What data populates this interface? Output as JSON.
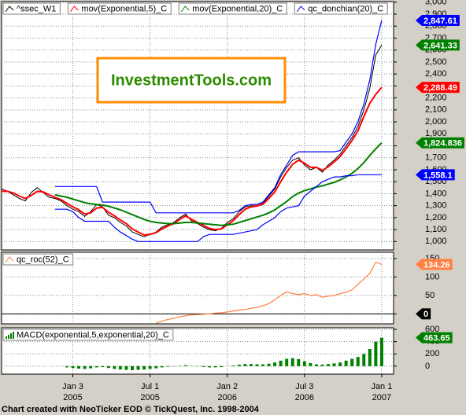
{
  "watermark": "InvestmentTools.com",
  "footer": "Chart created with NeoTicker EOD © TickQuest, Inc. 1998-2004",
  "chart_data": [
    {
      "type": "line",
      "x": [
        -24,
        -22,
        -20,
        -18,
        -16,
        -14,
        -12,
        -10,
        -8,
        -6,
        -4,
        -2,
        0,
        2,
        4,
        6,
        8,
        10,
        12,
        14,
        16,
        18,
        20,
        22,
        24,
        26,
        28,
        30,
        32,
        34,
        36,
        38,
        40,
        42,
        44,
        46,
        48,
        50,
        52,
        54,
        56,
        58,
        60,
        62,
        64,
        66,
        68,
        70,
        72,
        74,
        76,
        78,
        80,
        82,
        84,
        86,
        88,
        90,
        92,
        94,
        96,
        98,
        100,
        102,
        104
      ],
      "xlim": [
        -24,
        108
      ],
      "xticks": [
        {
          "value": 0,
          "label": "Jan 3",
          "year": "2005"
        },
        {
          "value": 26,
          "label": "Jul 1",
          "year": "2005"
        },
        {
          "value": 52,
          "label": "Jan 2",
          "year": "2006"
        },
        {
          "value": 78,
          "label": "Jul 3",
          "year": "2006"
        },
        {
          "value": 104,
          "label": "Jan 1",
          "year": "2007"
        }
      ],
      "ylim": [
        930,
        3005
      ],
      "yticks": [
        {
          "value": 1000,
          "label": "1,000"
        },
        {
          "value": 1100,
          "label": "1,100"
        },
        {
          "value": 1200,
          "label": "1,200"
        },
        {
          "value": 1300,
          "label": "1,300"
        },
        {
          "value": 1400,
          "label": "1,400"
        },
        {
          "value": 1500,
          "label": "1,500"
        },
        {
          "value": 1600,
          "label": "1,600"
        },
        {
          "value": 1700,
          "label": "1,700"
        },
        {
          "value": 1800,
          "label": "1,800"
        },
        {
          "value": 1900,
          "label": "1,900"
        },
        {
          "value": 2000,
          "label": "2,000"
        },
        {
          "value": 2100,
          "label": "2,100"
        },
        {
          "value": 2200,
          "label": "2,200"
        },
        {
          "value": 2300,
          "label": "2,300"
        },
        {
          "value": 2400,
          "label": "2,400"
        },
        {
          "value": 2500,
          "label": "2,500"
        },
        {
          "value": 2600,
          "label": "2,600"
        },
        {
          "value": 2700,
          "label": "2,700"
        },
        {
          "value": 2800,
          "label": "2,800"
        },
        {
          "value": 2900,
          "label": "2,900"
        },
        {
          "value": 3000,
          "label": "3,000"
        }
      ],
      "grid": true,
      "series": [
        {
          "name": "^ssec_W1",
          "color": "#000000",
          "label_color": "#008000",
          "values": [
            1440,
            1420,
            1390,
            1360,
            1340,
            1410,
            1450,
            1410,
            1370,
            1360,
            1340,
            1300,
            1270,
            1250,
            1210,
            1250,
            1310,
            1290,
            1220,
            1200,
            1160,
            1130,
            1080,
            1060,
            1040,
            1060,
            1080,
            1120,
            1140,
            1160,
            1200,
            1230,
            1170,
            1150,
            1120,
            1100,
            1090,
            1110,
            1160,
            1190,
            1250,
            1290,
            1300,
            1300,
            1320,
            1380,
            1440,
            1540,
            1620,
            1680,
            1700,
            1640,
            1600,
            1620,
            1580,
            1640,
            1680,
            1730,
            1800,
            1870,
            1960,
            2100,
            2280,
            2560,
            2641.33
          ],
          "value_labels": {
            "64": "2,641.33"
          }
        },
        {
          "name": "mov(Exponential,5)_C",
          "color": "#ff0000",
          "label_color": "#ff0000",
          "values": [
            1420,
            1420,
            1405,
            1380,
            1360,
            1385,
            1420,
            1415,
            1390,
            1370,
            1350,
            1320,
            1290,
            1265,
            1230,
            1240,
            1280,
            1285,
            1245,
            1215,
            1180,
            1150,
            1105,
            1080,
            1055,
            1060,
            1075,
            1105,
            1130,
            1150,
            1185,
            1215,
            1185,
            1160,
            1135,
            1110,
            1100,
            1105,
            1140,
            1175,
            1225,
            1270,
            1290,
            1298,
            1312,
            1360,
            1415,
            1500,
            1580,
            1645,
            1680,
            1655,
            1620,
            1620,
            1595,
            1625,
            1665,
            1710,
            1775,
            1845,
            1925,
            2045,
            2155,
            2230,
            2288.49
          ],
          "value_labels": {
            "64": "2,288.49"
          }
        },
        {
          "name": "mov(Exponential,20)_C",
          "color": "#008000",
          "label_color": "#008000",
          "values": [
            null,
            null,
            null,
            null,
            null,
            null,
            null,
            null,
            null,
            1390,
            1380,
            1370,
            1355,
            1340,
            1325,
            1315,
            1310,
            1305,
            1295,
            1280,
            1265,
            1245,
            1225,
            1205,
            1185,
            1170,
            1160,
            1155,
            1150,
            1150,
            1155,
            1160,
            1160,
            1155,
            1150,
            1145,
            1140,
            1135,
            1140,
            1145,
            1160,
            1175,
            1190,
            1205,
            1220,
            1240,
            1265,
            1300,
            1335,
            1375,
            1405,
            1425,
            1440,
            1455,
            1465,
            1480,
            1495,
            1515,
            1540,
            1570,
            1610,
            1660,
            1720,
            1775,
            1824.836
          ],
          "value_labels": {
            "64": "1,824.836"
          }
        },
        {
          "name": "qc_donchian(20)_C",
          "color": "#0000ff",
          "label_color": "#0000ff",
          "values": [
            null,
            null,
            null,
            null,
            null,
            null,
            null,
            null,
            null,
            1460,
            1460,
            1460,
            1460,
            1460,
            1460,
            1460,
            1460,
            1330,
            1330,
            1330,
            1330,
            1330,
            1330,
            1330,
            1330,
            1330,
            1240,
            1240,
            1240,
            1240,
            1240,
            1240,
            1240,
            1240,
            1240,
            1240,
            1240,
            1240,
            1240,
            1240,
            1260,
            1300,
            1310,
            1310,
            1330,
            1390,
            1450,
            1560,
            1640,
            1720,
            1750,
            1750,
            1750,
            1750,
            1750,
            1750,
            1750,
            1760,
            1830,
            1900,
            2000,
            2150,
            2350,
            2650,
            2847.61
          ],
          "value_labels": {
            "64": "2,847.61"
          },
          "lower": [
            null,
            null,
            null,
            null,
            null,
            null,
            null,
            null,
            null,
            1270,
            1270,
            1270,
            1250,
            1200,
            1170,
            1170,
            1170,
            1170,
            1170,
            1120,
            1080,
            1050,
            1020,
            1000,
            1000,
            1000,
            1000,
            1000,
            1000,
            1000,
            1000,
            1000,
            1000,
            1000,
            1040,
            1060,
            1060,
            1060,
            1060,
            1060,
            1070,
            1080,
            1090,
            1100,
            1140,
            1170,
            1200,
            1250,
            1280,
            1290,
            1300,
            1380,
            1420,
            1460,
            1500,
            1520,
            1540,
            1540,
            1550,
            1550,
            1558.1,
            1558.1,
            1558.1,
            1558.1,
            1558.1
          ],
          "lower_labels": {
            "64": "1,558.1"
          }
        }
      ]
    },
    {
      "type": "line",
      "ylim": [
        -27,
        167
      ],
      "yticks": [
        0,
        50,
        100,
        150
      ],
      "grid": true,
      "ref_line": 0,
      "series": [
        {
          "name": "qc_roc(52)_C",
          "color": "#ff8040",
          "label_color": "#ff8040",
          "values": [
            null,
            null,
            null,
            null,
            null,
            null,
            null,
            null,
            null,
            null,
            null,
            null,
            null,
            null,
            null,
            null,
            null,
            null,
            null,
            null,
            null,
            null,
            null,
            null,
            null,
            null,
            -25,
            -20,
            -15,
            -12,
            -8,
            -5,
            -3,
            -2,
            -1,
            0,
            2,
            3,
            5,
            8,
            10,
            12,
            15,
            18,
            22,
            28,
            38,
            50,
            60,
            55,
            52,
            55,
            50,
            52,
            45,
            48,
            50,
            55,
            58,
            65,
            80,
            95,
            110,
            140,
            134.26
          ]
        }
      ]
    },
    {
      "type": "bar",
      "ylim": [
        -130,
        626
      ],
      "yticks": [
        0,
        200,
        400,
        600
      ],
      "grid": true,
      "series": [
        {
          "name": "MACD(exponential,5,exponential,20)_C",
          "color": "#008000",
          "label_color": "#008000",
          "values": [
            null,
            null,
            null,
            null,
            null,
            null,
            null,
            null,
            null,
            null,
            null,
            -20,
            -30,
            -40,
            -45,
            -35,
            -20,
            -15,
            -30,
            -45,
            -55,
            -60,
            -65,
            -60,
            -55,
            -45,
            -35,
            -20,
            -10,
            -5,
            5,
            15,
            5,
            -5,
            -15,
            -20,
            -20,
            -15,
            0,
            10,
            25,
            35,
            35,
            30,
            30,
            40,
            60,
            90,
            120,
            130,
            115,
            80,
            50,
            30,
            25,
            35,
            45,
            60,
            90,
            120,
            150,
            200,
            280,
            400,
            463.65
          ]
        }
      ]
    }
  ]
}
